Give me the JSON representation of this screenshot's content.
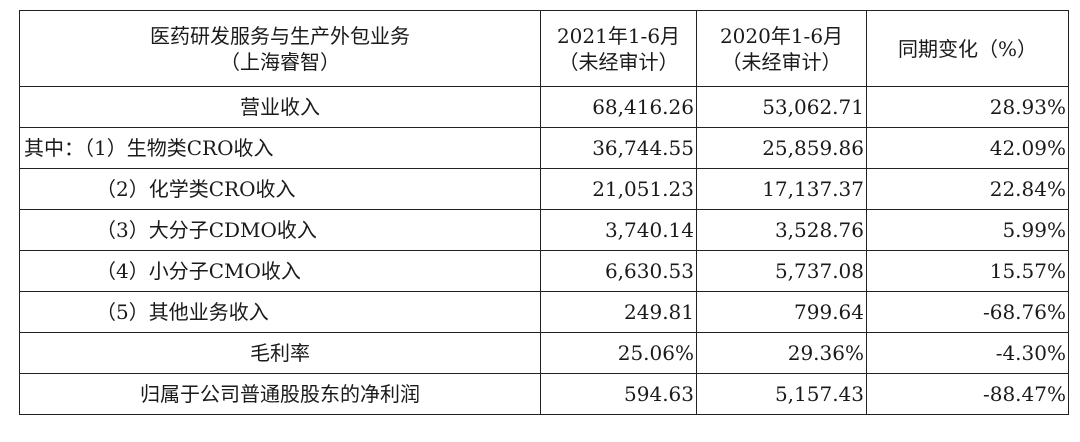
{
  "header": {
    "col1": [
      "医药研发服务与生产外包业务",
      "（上海睿智）"
    ],
    "col2": [
      "2021年1-6月",
      "（未经审计）"
    ],
    "col3": [
      "2020年1-6月",
      "（未经审计）"
    ],
    "col4": "同期变化（%）"
  },
  "rows": [
    {
      "label": "营业收入",
      "align": "center",
      "indent": 0,
      "v2021": "68,416.26",
      "v2020": "53,062.71",
      "change": "28.93%"
    },
    {
      "label": "其中：（1）生物类CRO收入",
      "align": "left",
      "indent": 0,
      "v2021": "36,744.55",
      "v2020": "25,859.86",
      "change": "42.09%"
    },
    {
      "label": "（2）化学类CRO收入",
      "align": "left",
      "indent": 72,
      "v2021": "21,051.23",
      "v2020": "17,137.37",
      "change": "22.84%"
    },
    {
      "label": "（3）大分子CDMO收入",
      "align": "left",
      "indent": 72,
      "v2021": "3,740.14",
      "v2020": "3,528.76",
      "change": "5.99%"
    },
    {
      "label": "（4）小分子CMO收入",
      "align": "left",
      "indent": 72,
      "v2021": "6,630.53",
      "v2020": "5,737.08",
      "change": "15.57%"
    },
    {
      "label": "（5）其他业务收入",
      "align": "left",
      "indent": 72,
      "v2021": "249.81",
      "v2020": "799.64",
      "change": "-68.76%"
    },
    {
      "label": "毛利率",
      "align": "center",
      "indent": 0,
      "v2021": "25.06%",
      "v2020": "29.36%",
      "change": "-4.30%"
    },
    {
      "label": "归属于公司普通股股东的净利润",
      "align": "center",
      "indent": 0,
      "v2021": "594.63",
      "v2020": "5,157.43",
      "change": "-88.47%"
    }
  ]
}
